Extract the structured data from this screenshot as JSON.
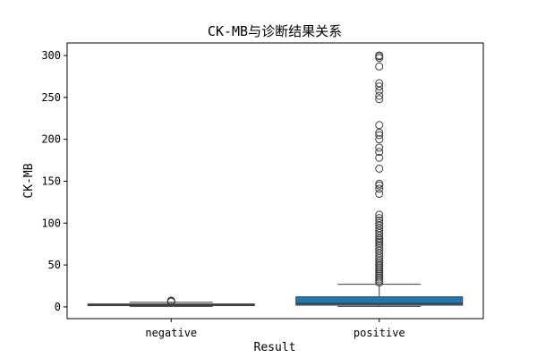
{
  "chart_data": {
    "type": "box",
    "title": "CK-MB与诊断结果关系",
    "xlabel": "Result",
    "ylabel": "CK-MB",
    "ylim": [
      -14,
      315
    ],
    "yticks": [
      0,
      50,
      100,
      150,
      200,
      250,
      300
    ],
    "grid": false,
    "categories": [
      "negative",
      "positive"
    ],
    "boxes": [
      {
        "category": "negative",
        "whisker_low": 0.5,
        "q1": 1.5,
        "median": 2.5,
        "q3": 3.5,
        "whisker_high": 5.5,
        "fliers": [
          6,
          6.5,
          7,
          7.5
        ],
        "color": "#3a5f7d"
      },
      {
        "category": "positive",
        "whisker_low": 0.5,
        "q1": 2,
        "median": 4,
        "q3": 12,
        "whisker_high": 27,
        "fliers": [
          29,
          31,
          33,
          35,
          37,
          39,
          41,
          43,
          45,
          47,
          49,
          51,
          53,
          55,
          58,
          61,
          64,
          67,
          70,
          73,
          76,
          78,
          80,
          82,
          85,
          88,
          91,
          94,
          97,
          100,
          103,
          106,
          110,
          135,
          141,
          145,
          147,
          165,
          178,
          185,
          190,
          200,
          205,
          208,
          217,
          248,
          252,
          258,
          263,
          267,
          287,
          297,
          299,
          300
        ],
        "color": "#1f77b4"
      }
    ]
  }
}
